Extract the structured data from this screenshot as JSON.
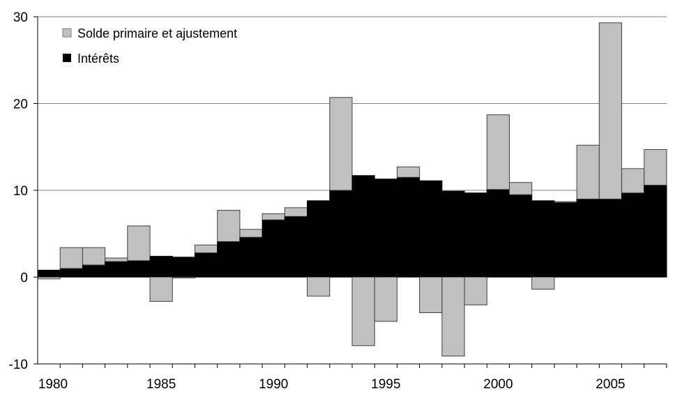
{
  "chart_data": {
    "type": "bar",
    "stacked": true,
    "title": "",
    "xlabel": "",
    "ylabel": "",
    "ylim": [
      -10,
      30
    ],
    "y_ticks": [
      30,
      20,
      10,
      0,
      -10
    ],
    "x_tick_labels": [
      "1980",
      "1985",
      "1990",
      "1995",
      "2000",
      "2005"
    ],
    "grid": "horizontal",
    "legend_position": "top-left",
    "categories": [
      1980,
      1981,
      1982,
      1983,
      1984,
      1985,
      1986,
      1987,
      1988,
      1989,
      1990,
      1991,
      1992,
      1993,
      1994,
      1995,
      1996,
      1997,
      1998,
      1999,
      2000,
      2001,
      2002,
      2003,
      2004,
      2005,
      2006,
      2007
    ],
    "series": [
      {
        "name": "Solde primaire et ajustement",
        "color": "#c0c0c0",
        "values": [
          -0.2,
          2.4,
          2.0,
          0.4,
          4.0,
          -2.8,
          -0.1,
          0.9,
          3.6,
          0.9,
          0.7,
          1.0,
          -2.2,
          10.7,
          -7.9,
          -5.1,
          1.2,
          -4.1,
          -9.1,
          -3.2,
          8.6,
          1.4,
          -1.4,
          0.1,
          6.2,
          20.3,
          2.8,
          4.1
        ]
      },
      {
        "name": "Intérêts",
        "color": "#000000",
        "values": [
          0.8,
          1.0,
          1.4,
          1.8,
          1.9,
          2.4,
          2.3,
          2.8,
          4.1,
          4.6,
          6.6,
          7.0,
          8.8,
          10.0,
          11.7,
          11.3,
          11.5,
          11.1,
          9.9,
          9.7,
          10.1,
          9.5,
          8.8,
          8.6,
          9.0,
          9.0,
          9.7,
          10.6
        ]
      }
    ]
  }
}
